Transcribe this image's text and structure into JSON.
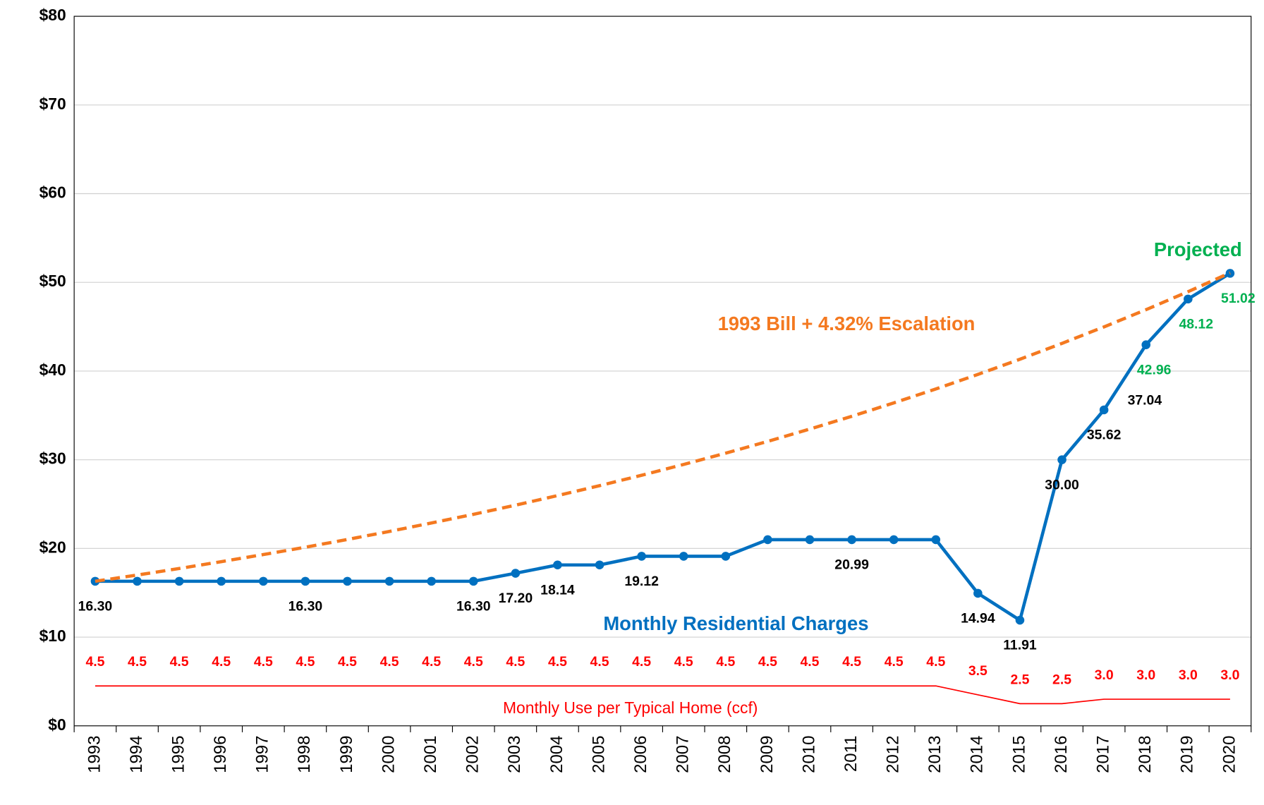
{
  "chart_data": {
    "type": "line",
    "categories": [
      "1993",
      "1994",
      "1995",
      "1996",
      "1997",
      "1998",
      "1999",
      "2000",
      "2001",
      "2002",
      "2003",
      "2004",
      "2005",
      "2006",
      "2007",
      "2008",
      "2009",
      "2010",
      "2011",
      "2012",
      "2013",
      "2014",
      "2015",
      "2016",
      "2017",
      "2018",
      "2019",
      "2020"
    ],
    "series": [
      {
        "name": "Monthly Residential Charges",
        "color": "#0070c0",
        "dash": false,
        "markers": true,
        "values": [
          16.3,
          16.3,
          16.3,
          16.3,
          16.3,
          16.3,
          16.3,
          16.3,
          16.3,
          16.3,
          17.2,
          18.14,
          18.14,
          19.12,
          19.12,
          19.12,
          20.99,
          20.99,
          20.99,
          20.99,
          20.99,
          14.94,
          11.91,
          30.0,
          35.62,
          42.96,
          48.12,
          51.02
        ],
        "value_labels": [
          "16.30",
          null,
          null,
          null,
          null,
          "16.30",
          null,
          null,
          null,
          "16.30",
          "17.20",
          "18.14",
          null,
          "19.12",
          null,
          null,
          null,
          null,
          "20.99",
          null,
          null,
          "14.94",
          "11.91",
          "30.00",
          "35.62",
          "42.96",
          "48.12",
          "51.02"
        ],
        "value_label_colors": [
          "#000000",
          "#000000",
          "#000000",
          "#000000",
          "#000000",
          "#000000",
          "#000000",
          "#000000",
          "#000000",
          "#000000",
          "#000000",
          "#000000",
          "#000000",
          "#000000",
          "#000000",
          "#000000",
          "#000000",
          "#000000",
          "#000000",
          "#000000",
          "#000000",
          "#000000",
          "#000000",
          "#000000",
          "#000000",
          "#00b050",
          "#00b050",
          "#00b050"
        ]
      },
      {
        "name": "1993 Bill + 4.32% Escalation",
        "color": "#f47920",
        "dash": true,
        "markers": false,
        "values": [
          16.3,
          17.0,
          17.74,
          18.51,
          19.31,
          20.14,
          21.01,
          21.92,
          22.87,
          23.85,
          24.88,
          25.96,
          27.08,
          28.25,
          29.47,
          30.74,
          32.07,
          33.46,
          34.9,
          36.41,
          37.98,
          39.62,
          41.33,
          43.12,
          44.98,
          46.92,
          48.95,
          51.07
        ]
      },
      {
        "name": "Monthly Use per Typical Home (ccf)",
        "color": "#ff0000",
        "dash": false,
        "markers": false,
        "values": [
          4.5,
          4.5,
          4.5,
          4.5,
          4.5,
          4.5,
          4.5,
          4.5,
          4.5,
          4.5,
          4.5,
          4.5,
          4.5,
          4.5,
          4.5,
          4.5,
          4.5,
          4.5,
          4.5,
          4.5,
          4.5,
          3.5,
          2.5,
          2.5,
          3.0,
          3.0,
          3.0,
          3.0
        ],
        "value_labels": [
          "4.5",
          "4.5",
          "4.5",
          "4.5",
          "4.5",
          "4.5",
          "4.5",
          "4.5",
          "4.5",
          "4.5",
          "4.5",
          "4.5",
          "4.5",
          "4.5",
          "4.5",
          "4.5",
          "4.5",
          "4.5",
          "4.5",
          "4.5",
          "4.5",
          "3.5",
          "2.5",
          "2.5",
          "3.0",
          "3.0",
          "3.0",
          "3.0"
        ],
        "value_label_colors": [
          "#ff0000",
          "#ff0000",
          "#ff0000",
          "#ff0000",
          "#ff0000",
          "#ff0000",
          "#ff0000",
          "#ff0000",
          "#ff0000",
          "#ff0000",
          "#ff0000",
          "#ff0000",
          "#ff0000",
          "#ff0000",
          "#ff0000",
          "#ff0000",
          "#ff0000",
          "#ff0000",
          "#ff0000",
          "#ff0000",
          "#ff0000",
          "#ff0000",
          "#ff0000",
          "#ff0000",
          "#ff0000",
          "#ff0000",
          "#ff0000",
          "#ff0000"
        ]
      }
    ],
    "annotations": [
      {
        "text": "Projected",
        "color": "#00b050"
      },
      {
        "text": "37.04",
        "color": "#000000"
      }
    ],
    "ylim": [
      0,
      80
    ],
    "yticks": [
      {
        "value": 0,
        "label": "$0"
      },
      {
        "value": 10,
        "label": "$10"
      },
      {
        "value": 20,
        "label": "$20"
      },
      {
        "value": 30,
        "label": "$30"
      },
      {
        "value": 40,
        "label": "$40"
      },
      {
        "value": 50,
        "label": "$50"
      },
      {
        "value": 60,
        "label": "$60"
      },
      {
        "value": 70,
        "label": "$70"
      },
      {
        "value": 80,
        "label": "$80"
      }
    ],
    "grid": true
  }
}
